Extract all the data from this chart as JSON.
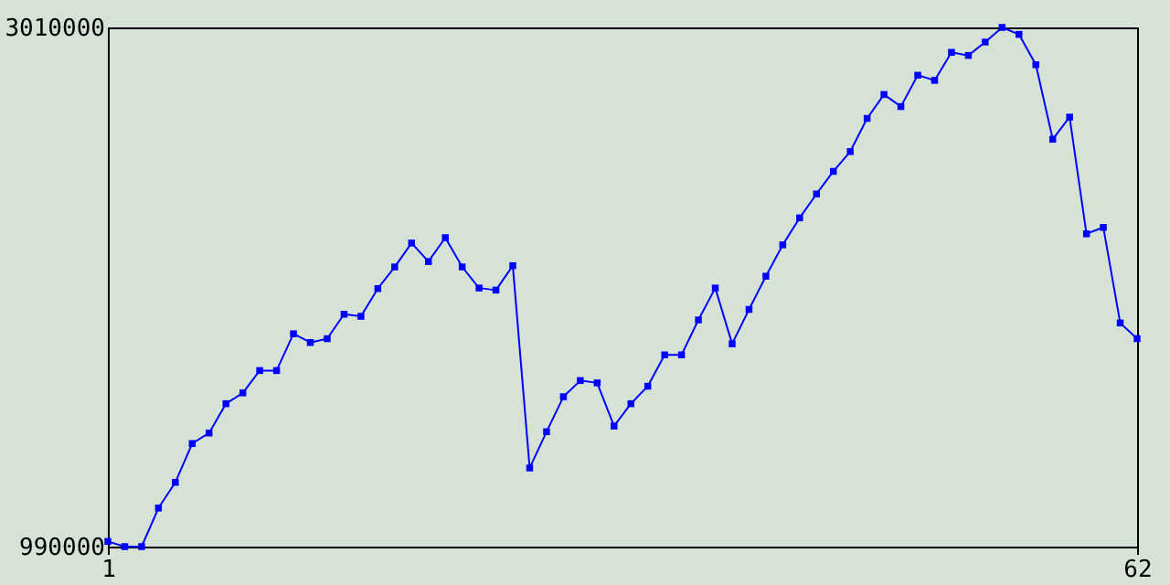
{
  "chart_data": {
    "type": "line",
    "x": [
      1,
      2,
      3,
      4,
      5,
      6,
      7,
      8,
      9,
      10,
      11,
      12,
      13,
      14,
      15,
      16,
      17,
      18,
      19,
      20,
      21,
      22,
      23,
      24,
      25,
      26,
      27,
      28,
      29,
      30,
      31,
      32,
      33,
      34,
      35,
      36,
      37,
      38,
      39,
      40,
      41,
      42,
      43,
      44,
      45,
      46,
      47,
      48,
      49,
      50,
      51,
      52,
      53,
      54,
      55,
      56,
      57,
      58,
      59,
      60,
      61,
      62
    ],
    "series": [
      {
        "color": "#0000ff",
        "values": [
          1010000,
          990000,
          990000,
          1140000,
          1240000,
          1391000,
          1432000,
          1546000,
          1588000,
          1675000,
          1675000,
          1818000,
          1784000,
          1799000,
          1894000,
          1886000,
          1994000,
          2078000,
          2171000,
          2099000,
          2192000,
          2078000,
          1996000,
          1988000,
          2083000,
          1296000,
          1437000,
          1573000,
          1636000,
          1627000,
          1459000,
          1546000,
          1614000,
          1736000,
          1736000,
          1872000,
          1996000,
          1779000,
          1913000,
          2042000,
          2164000,
          2269000,
          2362000,
          2450000,
          2527000,
          2656000,
          2749000,
          2702000,
          2824000,
          2804000,
          2913000,
          2901000,
          2953000,
          3010000,
          2983000,
          2865000,
          2575000,
          2661000,
          2207000,
          2232000,
          1860000,
          1799000
        ]
      }
    ],
    "xlim": [
      1,
      62
    ],
    "xticks": [
      1,
      62
    ],
    "ylim": [
      990000,
      3010000
    ],
    "yticks": [
      990000,
      3010000
    ],
    "grid": false,
    "marker": "square",
    "line_style": "solid"
  }
}
